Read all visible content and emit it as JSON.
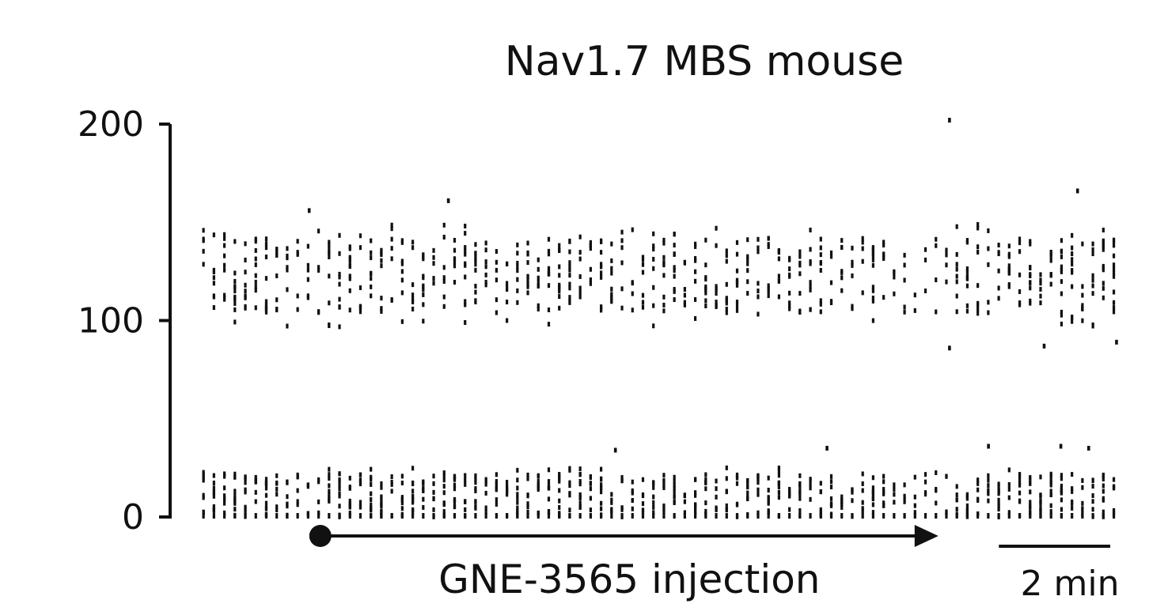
{
  "chart_data": {
    "type": "scatter",
    "title": "Nav1.7 MBS mouse",
    "ylabel": "",
    "xlabel": "",
    "ylim": [
      0,
      200
    ],
    "yticks": [
      {
        "value": 0,
        "label": "0"
      },
      {
        "value": 100,
        "label": "100"
      },
      {
        "value": 200,
        "label": "200"
      }
    ],
    "x_unit": "min",
    "xlim": [
      0,
      16.6
    ],
    "scale_bar": {
      "length": 2,
      "label": "2 min"
    },
    "injection": {
      "label": "GNE-3565 injection",
      "start": 2.2,
      "end": 13.3
    },
    "bands": [
      {
        "name": "",
        "low": 95,
        "high": 150,
        "core_low": 104,
        "core_high": 142
      },
      {
        "name": "",
        "low": 0,
        "high": 25,
        "core_low": 0,
        "core_high": 22
      }
    ],
    "outliers": [
      {
        "x": 13.5,
        "y": 202
      },
      {
        "x": 15.8,
        "y": 166
      },
      {
        "x": 4.5,
        "y": 161
      },
      {
        "x": 2.0,
        "y": 156
      },
      {
        "x": 13.5,
        "y": 86
      },
      {
        "x": 15.2,
        "y": 87
      },
      {
        "x": 16.5,
        "y": 89
      },
      {
        "x": 7.5,
        "y": 34
      },
      {
        "x": 11.3,
        "y": 35
      },
      {
        "x": 14.2,
        "y": 36
      },
      {
        "x": 15.5,
        "y": 36
      },
      {
        "x": 16.0,
        "y": 35
      }
    ],
    "colors": {
      "ink": "#111111",
      "background": "#ffffff"
    },
    "grid": false
  }
}
